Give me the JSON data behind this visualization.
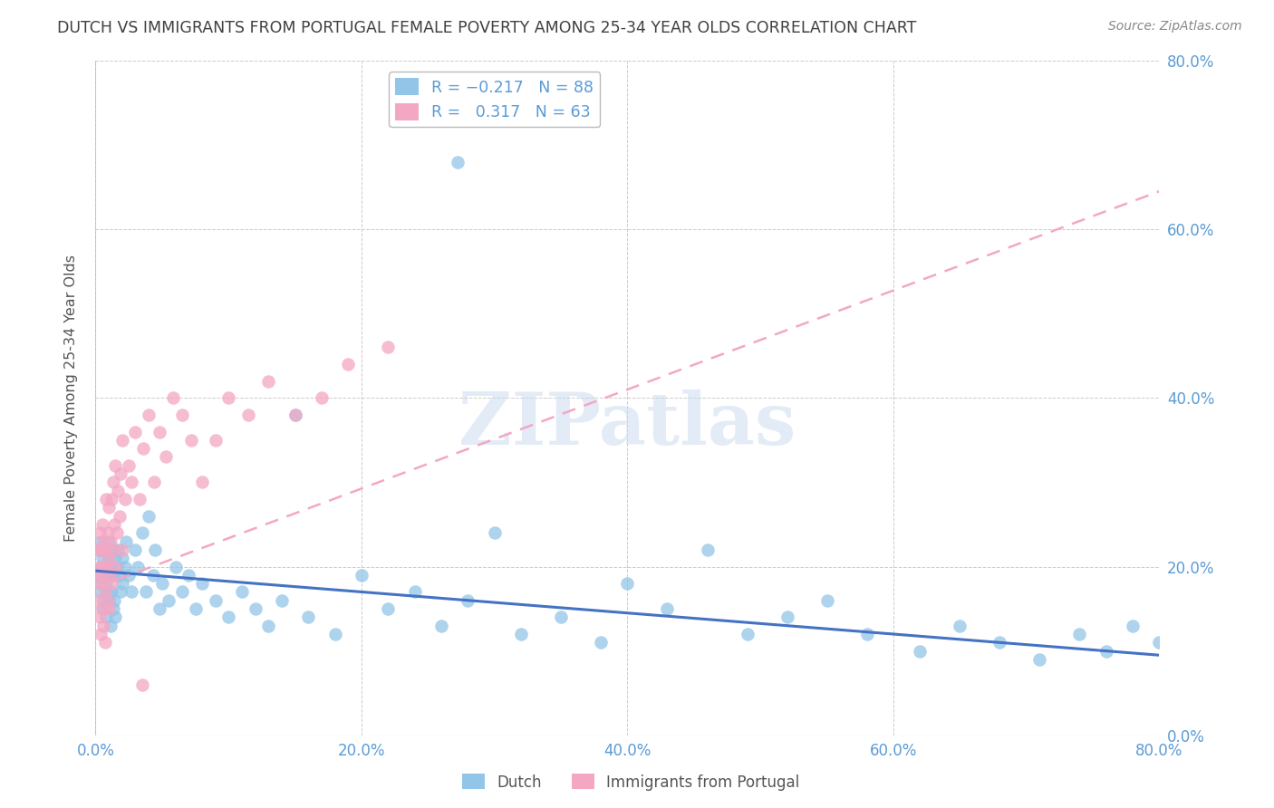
{
  "title": "DUTCH VS IMMIGRANTS FROM PORTUGAL FEMALE POVERTY AMONG 25-34 YEAR OLDS CORRELATION CHART",
  "source": "Source: ZipAtlas.com",
  "ylabel": "Female Poverty Among 25-34 Year Olds",
  "xlim": [
    0.0,
    0.8
  ],
  "ylim": [
    0.0,
    0.8
  ],
  "xticks": [
    0.0,
    0.2,
    0.4,
    0.6,
    0.8
  ],
  "yticks": [
    0.0,
    0.2,
    0.4,
    0.6,
    0.8
  ],
  "dutch_color": "#92C5E8",
  "portugal_color": "#F4A7C3",
  "dutch_R": -0.217,
  "dutch_N": 88,
  "portugal_R": 0.317,
  "portugal_N": 63,
  "legend_label_dutch": "Dutch",
  "legend_label_portugal": "Immigrants from Portugal",
  "watermark": "ZIPatlas",
  "background_color": "#ffffff",
  "grid_color": "#cccccc",
  "axis_label_color": "#5b9bd5",
  "title_color": "#404040",
  "dutch_line_color": "#4472C4",
  "portugal_line_color": "#F4A7C3",
  "dutch_line_x0": 0.0,
  "dutch_line_y0": 0.195,
  "dutch_line_x1": 0.8,
  "dutch_line_y1": 0.095,
  "portugal_line_x0": 0.0,
  "portugal_line_y0": 0.175,
  "portugal_line_x1": 0.8,
  "portugal_line_y1": 0.645,
  "dutch_x": [
    0.002,
    0.003,
    0.003,
    0.004,
    0.004,
    0.005,
    0.005,
    0.005,
    0.006,
    0.006,
    0.007,
    0.007,
    0.008,
    0.008,
    0.009,
    0.009,
    0.01,
    0.01,
    0.01,
    0.011,
    0.011,
    0.012,
    0.012,
    0.013,
    0.013,
    0.014,
    0.014,
    0.015,
    0.015,
    0.016,
    0.017,
    0.018,
    0.019,
    0.02,
    0.02,
    0.022,
    0.023,
    0.025,
    0.027,
    0.03,
    0.032,
    0.035,
    0.038,
    0.04,
    0.043,
    0.045,
    0.048,
    0.05,
    0.055,
    0.06,
    0.065,
    0.07,
    0.075,
    0.08,
    0.09,
    0.1,
    0.11,
    0.12,
    0.13,
    0.14,
    0.16,
    0.18,
    0.2,
    0.22,
    0.24,
    0.26,
    0.28,
    0.3,
    0.32,
    0.35,
    0.38,
    0.4,
    0.43,
    0.46,
    0.49,
    0.52,
    0.55,
    0.58,
    0.62,
    0.65,
    0.68,
    0.71,
    0.74,
    0.76,
    0.78,
    0.8,
    0.272,
    0.15
  ],
  "dutch_y": [
    0.19,
    0.22,
    0.17,
    0.2,
    0.23,
    0.18,
    0.21,
    0.15,
    0.2,
    0.16,
    0.19,
    0.22,
    0.18,
    0.14,
    0.2,
    0.17,
    0.21,
    0.16,
    0.23,
    0.19,
    0.13,
    0.2,
    0.17,
    0.22,
    0.15,
    0.19,
    0.16,
    0.21,
    0.14,
    0.2,
    0.22,
    0.19,
    0.17,
    0.21,
    0.18,
    0.2,
    0.23,
    0.19,
    0.17,
    0.22,
    0.2,
    0.24,
    0.17,
    0.26,
    0.19,
    0.22,
    0.15,
    0.18,
    0.16,
    0.2,
    0.17,
    0.19,
    0.15,
    0.18,
    0.16,
    0.14,
    0.17,
    0.15,
    0.13,
    0.16,
    0.14,
    0.12,
    0.19,
    0.15,
    0.17,
    0.13,
    0.16,
    0.24,
    0.12,
    0.14,
    0.11,
    0.18,
    0.15,
    0.22,
    0.12,
    0.14,
    0.16,
    0.12,
    0.1,
    0.13,
    0.11,
    0.09,
    0.12,
    0.1,
    0.13,
    0.11,
    0.68,
    0.38
  ],
  "portugal_x": [
    0.001,
    0.002,
    0.002,
    0.003,
    0.003,
    0.003,
    0.004,
    0.004,
    0.004,
    0.005,
    0.005,
    0.005,
    0.006,
    0.006,
    0.006,
    0.007,
    0.007,
    0.007,
    0.008,
    0.008,
    0.009,
    0.009,
    0.01,
    0.01,
    0.01,
    0.011,
    0.011,
    0.012,
    0.012,
    0.013,
    0.013,
    0.014,
    0.015,
    0.015,
    0.016,
    0.017,
    0.018,
    0.019,
    0.02,
    0.02,
    0.022,
    0.025,
    0.027,
    0.03,
    0.033,
    0.036,
    0.04,
    0.044,
    0.048,
    0.053,
    0.058,
    0.065,
    0.072,
    0.08,
    0.09,
    0.1,
    0.115,
    0.13,
    0.15,
    0.17,
    0.19,
    0.22,
    0.035
  ],
  "portugal_y": [
    0.19,
    0.22,
    0.16,
    0.2,
    0.14,
    0.24,
    0.18,
    0.22,
    0.12,
    0.2,
    0.15,
    0.25,
    0.19,
    0.13,
    0.23,
    0.17,
    0.22,
    0.11,
    0.2,
    0.28,
    0.16,
    0.24,
    0.21,
    0.15,
    0.27,
    0.19,
    0.23,
    0.18,
    0.28,
    0.22,
    0.3,
    0.25,
    0.2,
    0.32,
    0.24,
    0.29,
    0.26,
    0.31,
    0.22,
    0.35,
    0.28,
    0.32,
    0.3,
    0.36,
    0.28,
    0.34,
    0.38,
    0.3,
    0.36,
    0.33,
    0.4,
    0.38,
    0.35,
    0.3,
    0.35,
    0.4,
    0.38,
    0.42,
    0.38,
    0.4,
    0.44,
    0.46,
    0.06
  ]
}
